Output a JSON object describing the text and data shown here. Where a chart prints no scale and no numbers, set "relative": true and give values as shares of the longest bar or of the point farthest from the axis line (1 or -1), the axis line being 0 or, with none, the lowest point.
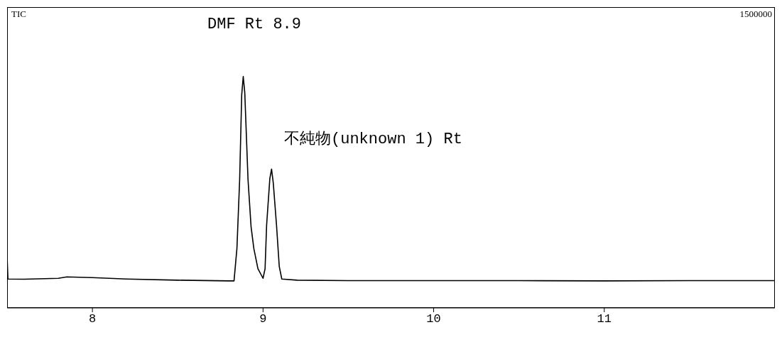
{
  "chart_data": {
    "type": "line",
    "title": "TIC",
    "relative": true,
    "x": [
      7.5,
      7.505,
      7.6,
      7.8,
      7.85,
      8.0,
      8.2,
      8.5,
      8.8,
      8.83,
      8.847,
      8.863,
      8.875,
      8.884,
      8.893,
      8.912,
      8.93,
      8.946,
      8.97,
      9.0,
      9.012,
      9.021,
      9.04,
      9.05,
      9.06,
      9.079,
      9.095,
      9.11,
      9.2,
      9.5,
      10.0,
      10.5,
      11.0,
      11.5,
      12.0
    ],
    "series": [
      {
        "color": "#000000",
        "values": [
          0.22,
          0.125,
          0.124,
          0.128,
          0.134,
          0.131,
          0.125,
          0.12,
          0.117,
          0.117,
          0.257,
          0.555,
          0.92,
          1.0,
          0.93,
          0.555,
          0.35,
          0.257,
          0.17,
          0.128,
          0.17,
          0.358,
          0.56,
          0.6,
          0.54,
          0.358,
          0.18,
          0.125,
          0.12,
          0.118,
          0.118,
          0.118,
          0.117,
          0.118,
          0.118
        ]
      }
    ],
    "xlim": [
      7.5,
      12.0
    ],
    "xticks": [
      8,
      9,
      10,
      11
    ],
    "grid": false,
    "legend": false,
    "marker": "none",
    "line_style": "solid",
    "annotations": [
      "1500000",
      "DMF Rt 8.9",
      "不純物(unknown 1) Rt"
    ]
  }
}
